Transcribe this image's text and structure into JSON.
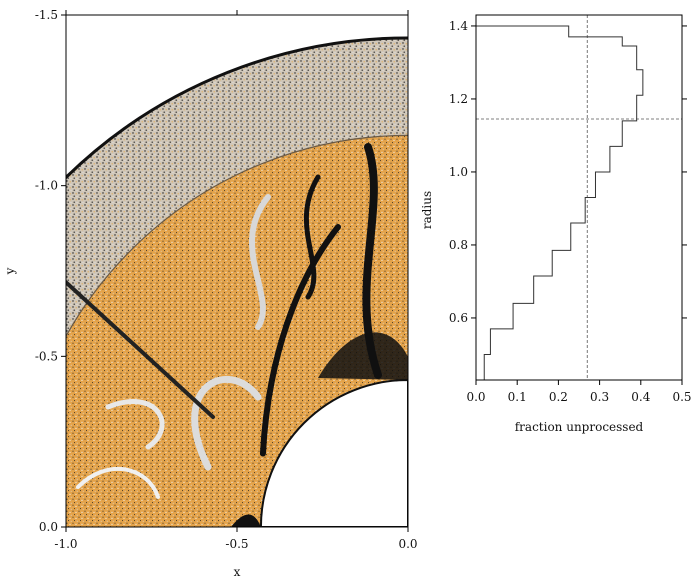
{
  "chart_data": [
    {
      "type": "scatter",
      "description_kind": "particle map",
      "xlabel": "x",
      "ylabel": "y",
      "xlim": [
        -1.0,
        0.0
      ],
      "ylim": [
        0.0,
        -1.5
      ],
      "y_inverted": true,
      "x_ticks": [
        "-1.0",
        "-0.5",
        "0.0"
      ],
      "y_ticks": [
        "-1.5",
        "-1.0",
        "-0.5",
        "0.0"
      ],
      "inner_radius": 0.43,
      "interface_radius": 1.145,
      "outer_radius": 1.43,
      "colors": {
        "processed": "#dcdcdc",
        "unprocessed": "#e9a843",
        "dense": "#111111"
      }
    },
    {
      "type": "line",
      "style": "step",
      "xlabel": "fraction unprocessed",
      "ylabel": "radius",
      "xlim": [
        0.0,
        0.5
      ],
      "ylim": [
        0.43,
        1.43
      ],
      "x_ticks": [
        "0.0",
        "0.1",
        "0.2",
        "0.3",
        "0.4",
        "0.5"
      ],
      "y_ticks": [
        "0.6",
        "0.8",
        "1.0",
        "1.2",
        "1.4"
      ],
      "radius": [
        0.43,
        0.5,
        0.57,
        0.64,
        0.715,
        0.785,
        0.86,
        0.93,
        1.0,
        1.07,
        1.14,
        1.21,
        1.28,
        1.345,
        1.37,
        1.4,
        1.43
      ],
      "fraction": [
        0.02,
        0.035,
        0.09,
        0.14,
        0.185,
        0.23,
        0.265,
        0.29,
        0.325,
        0.355,
        0.39,
        0.405,
        0.39,
        0.355,
        0.225,
        0.0
      ],
      "reference_x": 0.27,
      "reference_y": 1.145
    }
  ]
}
